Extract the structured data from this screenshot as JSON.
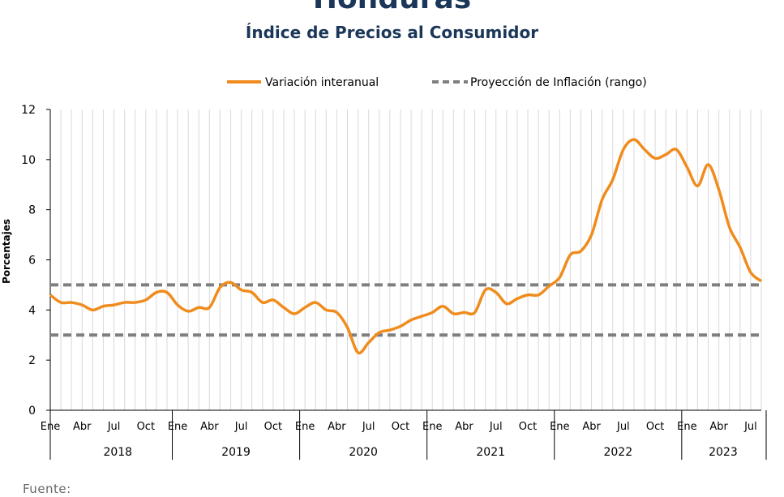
{
  "header": {
    "title": "Honduras",
    "subtitle": "Índice de Precios al Consumidor"
  },
  "footer": {
    "source_label": "Fuente:"
  },
  "colors": {
    "inflation": "#f08c1e",
    "target": "#7f7f7f",
    "grid": "#d9d9d9",
    "title": "#1a3658"
  },
  "chart_data": {
    "type": "line",
    "ylabel": "Porcentajes",
    "ylim": [
      0,
      12
    ],
    "yticks": [
      0,
      2,
      4,
      6,
      8,
      10,
      12
    ],
    "grid": true,
    "legend_position": "top",
    "month_ticks": [
      "Ene",
      "Abr",
      "Jul",
      "Oct"
    ],
    "years": [
      "2018",
      "2019",
      "2020",
      "2021",
      "2022",
      "2023"
    ],
    "x_start": "2018-01",
    "x_end": "2023-07",
    "series": [
      {
        "name": "Variación interanual",
        "style": "solid",
        "values": [
          4.6,
          4.3,
          4.3,
          4.2,
          4.0,
          4.15,
          4.2,
          4.3,
          4.3,
          4.4,
          4.7,
          4.7,
          4.2,
          3.95,
          4.1,
          4.1,
          4.9,
          5.1,
          4.8,
          4.7,
          4.3,
          4.4,
          4.1,
          3.85,
          4.1,
          4.3,
          4.0,
          3.9,
          3.3,
          2.3,
          2.7,
          3.1,
          3.2,
          3.35,
          3.6,
          3.75,
          3.9,
          4.15,
          3.85,
          3.9,
          3.9,
          4.8,
          4.7,
          4.25,
          4.45,
          4.6,
          4.6,
          4.95,
          5.3,
          6.2,
          6.35,
          7.0,
          8.4,
          9.2,
          10.4,
          10.8,
          10.4,
          10.05,
          10.2,
          10.4,
          9.7,
          8.95,
          9.8,
          8.8,
          7.3,
          6.5,
          5.5,
          5.15
        ]
      },
      {
        "name": "Proyección de Inflación (rango)",
        "style": "dashed",
        "bounds": [
          3.0,
          5.0
        ]
      }
    ]
  }
}
